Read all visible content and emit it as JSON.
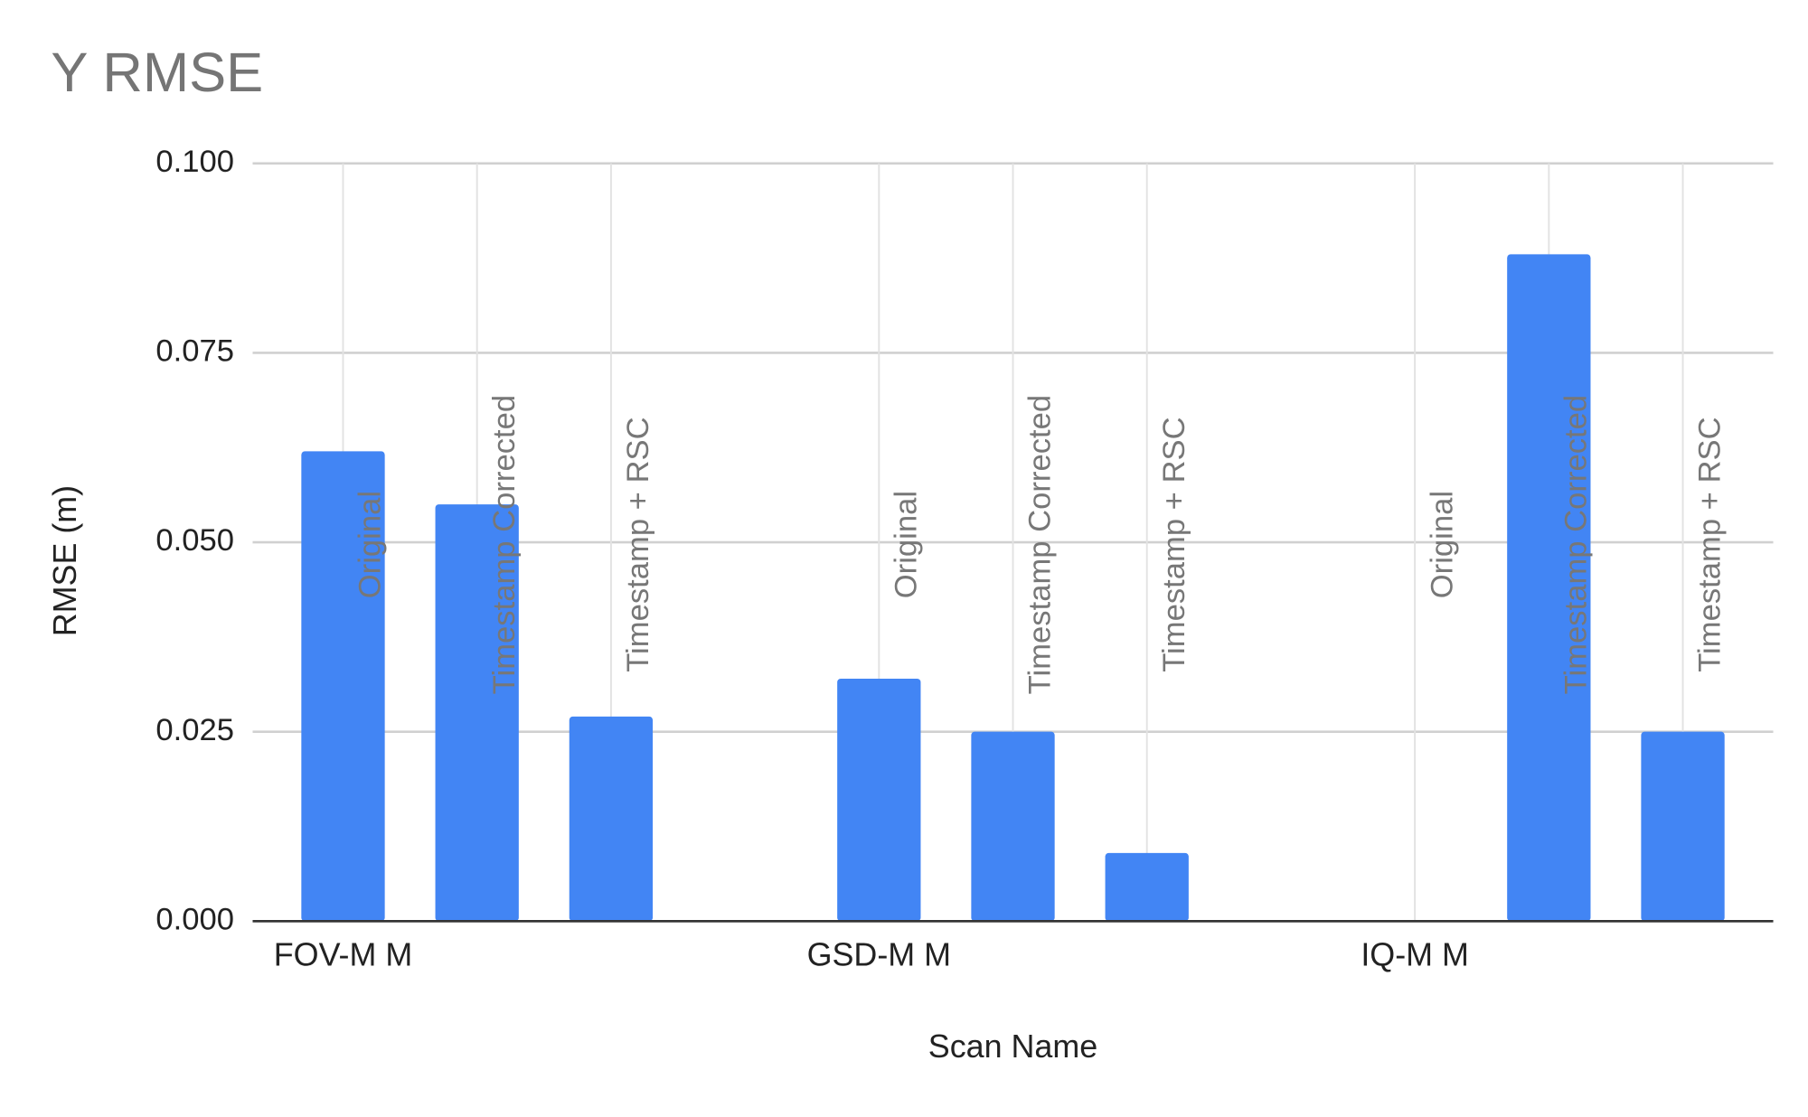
{
  "chart_data": {
    "type": "bar",
    "title": "Y RMSE",
    "x_label": "Scan Name",
    "y_label": "RMSE (m)",
    "groups": [
      "FOV-M M",
      "GSD-M M",
      "IQ-M M"
    ],
    "categories": [
      "Original",
      "Timestamp Corrected",
      "Timestamp + RSC",
      null,
      "Original",
      "Timestamp Corrected",
      "Timestamp + RSC",
      null,
      "Original",
      "Timestamp Corrected",
      "Timestamp + RSC"
    ],
    "values": [
      0.062,
      0.055,
      0.027,
      null,
      0.032,
      0.025,
      0.009,
      null,
      null,
      0.088,
      0.025
    ],
    "color": "#4285f4",
    "ylim": [
      0,
      0.1
    ],
    "yticks": [
      {
        "value": 0,
        "label": "0.000"
      },
      {
        "value": 0.025,
        "label": "0.025"
      },
      {
        "value": 0.05,
        "label": "0.050"
      },
      {
        "value": 0.075,
        "label": "0.075"
      },
      {
        "value": 0.1,
        "label": "0.100"
      }
    ],
    "grid": true
  }
}
